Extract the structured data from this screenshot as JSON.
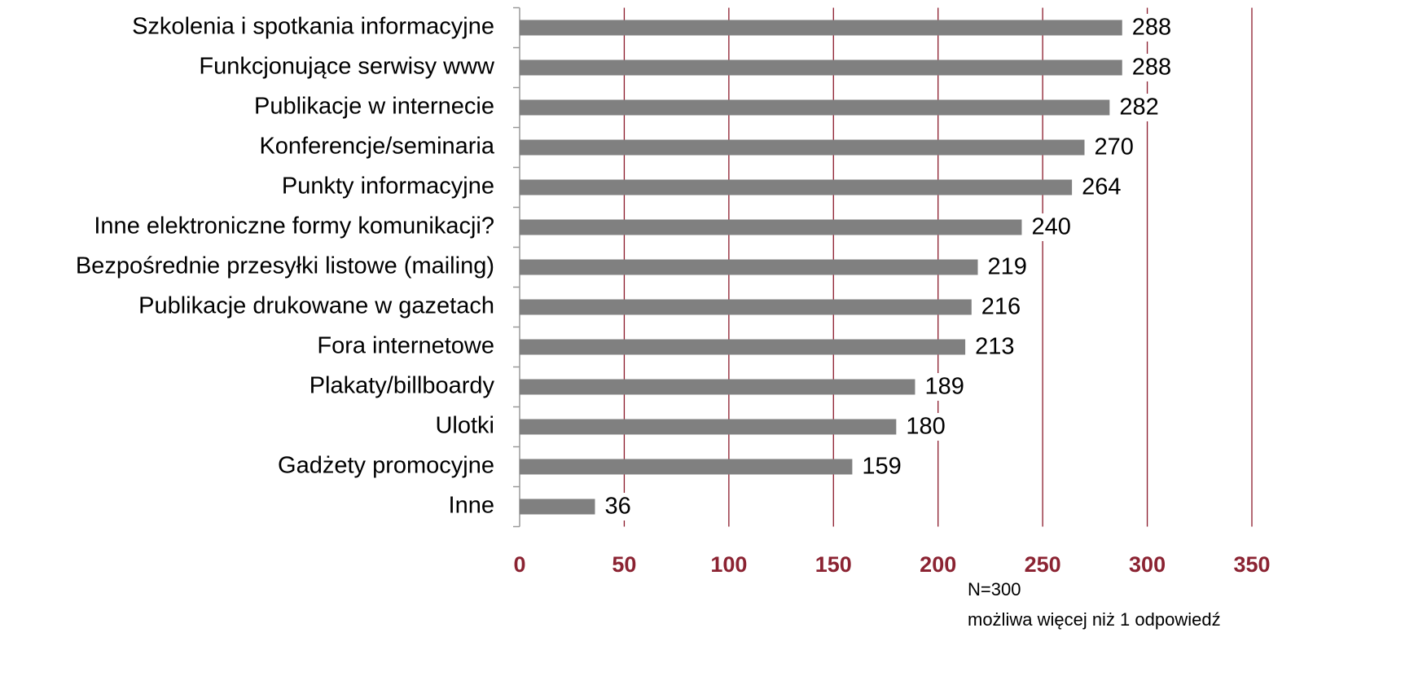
{
  "chart_data": {
    "type": "bar",
    "orientation": "horizontal",
    "categories": [
      "Szkolenia i spotkania informacyjne",
      "Funkcjonujące serwisy www",
      "Publikacje w internecie",
      "Konferencje/seminaria",
      "Punkty informacyjne",
      "Inne elektroniczne formy komunikacji?",
      "Bezpośrednie przesyłki listowe (mailing)",
      "Publikacje drukowane w gazetach",
      "Fora internetowe",
      "Plakaty/billboardy",
      "Ulotki",
      "Gadżety promocyjne",
      "Inne"
    ],
    "values": [
      288,
      288,
      282,
      270,
      264,
      240,
      219,
      216,
      213,
      189,
      180,
      159,
      36
    ],
    "color": "#808080",
    "xlim": [
      0,
      350
    ],
    "xticks": [
      0,
      50,
      100,
      150,
      200,
      250,
      300,
      350
    ],
    "grid": true,
    "notes": [
      "N=300",
      "możliwa więcej niż 1 odpowiedź"
    ]
  }
}
